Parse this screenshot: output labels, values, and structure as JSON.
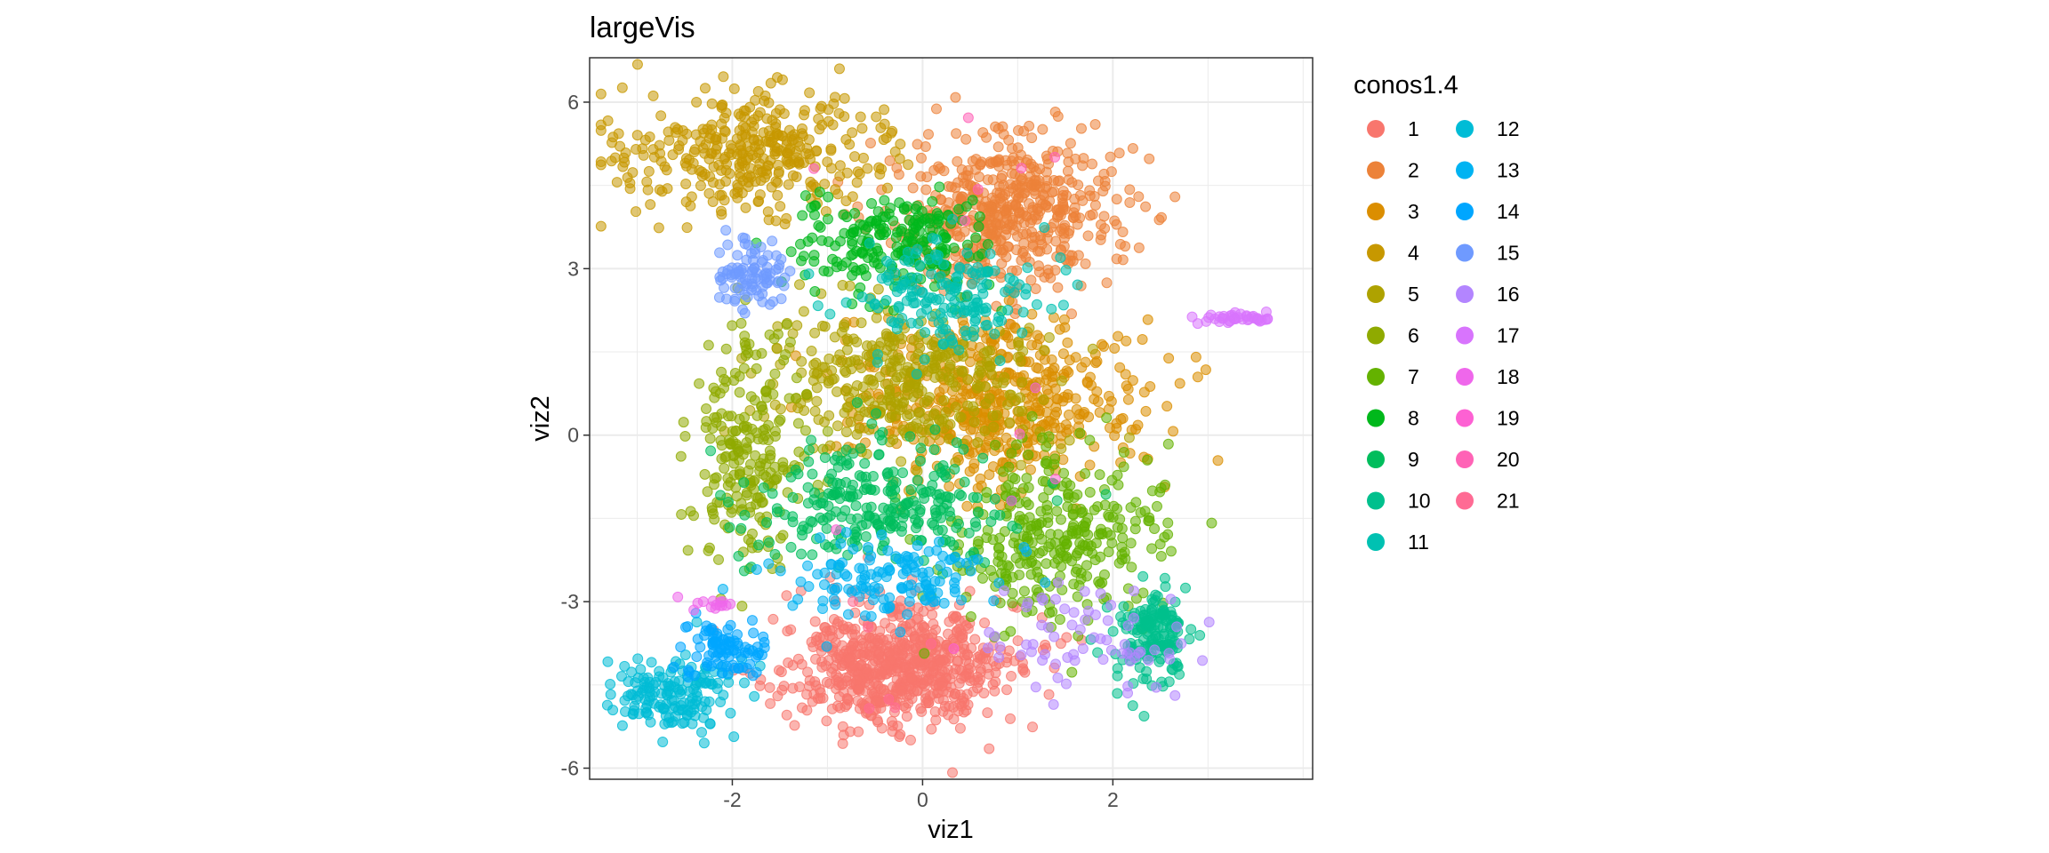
{
  "chart_data": {
    "type": "scatter",
    "title": "largeVis",
    "xlabel": "viz1",
    "ylabel": "viz2",
    "xlim": [
      -3.5,
      4.1
    ],
    "ylim": [
      -6.2,
      6.8
    ],
    "x_ticks": [
      -2,
      0,
      2
    ],
    "x_tick_labels": [
      "-2",
      "0",
      "2"
    ],
    "y_ticks": [
      -6,
      -3,
      0,
      3,
      6
    ],
    "y_tick_labels": [
      "-6",
      "-3",
      "0",
      "3",
      "6"
    ],
    "grid": true,
    "point_alpha": 0.55,
    "legend": {
      "title": "conos1.4",
      "position": "right",
      "columns": 2,
      "entries": [
        {
          "label": "1",
          "color": "#F8766D"
        },
        {
          "label": "2",
          "color": "#EC8239"
        },
        {
          "label": "3",
          "color": "#DB8E00"
        },
        {
          "label": "4",
          "color": "#C79800"
        },
        {
          "label": "5",
          "color": "#AEA200"
        },
        {
          "label": "6",
          "color": "#8FAA00"
        },
        {
          "label": "7",
          "color": "#64B200"
        },
        {
          "label": "8",
          "color": "#00B81B"
        },
        {
          "label": "9",
          "color": "#00BD5C"
        },
        {
          "label": "10",
          "color": "#00C08D"
        },
        {
          "label": "11",
          "color": "#00C1B2"
        },
        {
          "label": "12",
          "color": "#00BCD6"
        },
        {
          "label": "13",
          "color": "#00B3F2"
        },
        {
          "label": "14",
          "color": "#00A6FF"
        },
        {
          "label": "15",
          "color": "#6F9AFF"
        },
        {
          "label": "16",
          "color": "#B385FF"
        },
        {
          "label": "17",
          "color": "#D874FD"
        },
        {
          "label": "18",
          "color": "#EF67EB"
        },
        {
          "label": "19",
          "color": "#FD61D3"
        },
        {
          "label": "20",
          "color": "#FF63B6"
        },
        {
          "label": "21",
          "color": "#FF6B94"
        }
      ]
    },
    "clusters": [
      {
        "label": "1",
        "color": "#F8766D",
        "cx": -0.25,
        "cy": -4.2,
        "sx": 0.6,
        "sy": 0.55,
        "n": 700
      },
      {
        "label": "2",
        "color": "#EC8239",
        "cx": 0.9,
        "cy": 4.0,
        "sx": 0.6,
        "sy": 0.7,
        "n": 520
      },
      {
        "label": "3",
        "color": "#DB8E00",
        "cx": 0.8,
        "cy": 0.6,
        "sx": 0.75,
        "sy": 0.75,
        "n": 520
      },
      {
        "label": "4",
        "color": "#C79800",
        "cx": -1.8,
        "cy": 5.1,
        "sx": 0.75,
        "sy": 0.55,
        "n": 360
      },
      {
        "label": "5",
        "color": "#AEA200",
        "cx": -0.2,
        "cy": 1.0,
        "sx": 0.7,
        "sy": 0.65,
        "n": 360
      },
      {
        "label": "6",
        "color": "#8FAA00",
        "cx": -1.8,
        "cy": -0.2,
        "sx": 0.3,
        "sy": 1.0,
        "n": 230
      },
      {
        "label": "7",
        "color": "#64B200",
        "cx": 1.4,
        "cy": -1.8,
        "sx": 0.6,
        "sy": 0.8,
        "n": 320
      },
      {
        "label": "8",
        "color": "#00B81B",
        "cx": -0.3,
        "cy": 3.4,
        "sx": 0.55,
        "sy": 0.45,
        "n": 220
      },
      {
        "label": "9",
        "color": "#00BD5C",
        "cx": -0.4,
        "cy": -1.3,
        "sx": 0.7,
        "sy": 0.55,
        "n": 270
      },
      {
        "label": "10",
        "color": "#00C08D",
        "cx": 2.4,
        "cy": -3.7,
        "sx": 0.2,
        "sy": 0.45,
        "n": 160
      },
      {
        "label": "11",
        "color": "#00C1B2",
        "cx": 0.3,
        "cy": 2.5,
        "sx": 0.5,
        "sy": 0.5,
        "n": 170
      },
      {
        "label": "12",
        "color": "#00BCD6",
        "cx": -2.6,
        "cy": -4.7,
        "sx": 0.35,
        "sy": 0.35,
        "n": 160
      },
      {
        "label": "13",
        "color": "#00B3F2",
        "cx": -0.3,
        "cy": -2.6,
        "sx": 0.6,
        "sy": 0.35,
        "n": 140
      },
      {
        "label": "14",
        "color": "#00A6FF",
        "cx": -2.1,
        "cy": -3.8,
        "sx": 0.2,
        "sy": 0.3,
        "n": 90
      },
      {
        "label": "15",
        "color": "#6F9AFF",
        "cx": -1.8,
        "cy": 2.9,
        "sx": 0.2,
        "sy": 0.3,
        "n": 90
      },
      {
        "label": "16",
        "color": "#B385FF",
        "cx": 1.7,
        "cy": -3.6,
        "sx": 0.5,
        "sy": 0.5,
        "n": 70
      },
      {
        "label": "17",
        "color": "#D874FD",
        "cx": 3.3,
        "cy": 2.1,
        "sx": 0.2,
        "sy": 0.05,
        "n": 40
      },
      {
        "label": "18",
        "color": "#EF67EB",
        "cx": -2.2,
        "cy": -3.05,
        "sx": 0.12,
        "sy": 0.06,
        "n": 14
      },
      {
        "label": "19",
        "color": "#FD61D3",
        "cx": 0.2,
        "cy": -1.5,
        "sx": 1.0,
        "sy": 1.5,
        "n": 6
      },
      {
        "label": "20",
        "color": "#FF63B6",
        "cx": 0.8,
        "cy": 4.8,
        "sx": 0.8,
        "sy": 0.8,
        "n": 6
      },
      {
        "label": "21",
        "color": "#FF6B94",
        "cx": -0.5,
        "cy": -4.0,
        "sx": 0.6,
        "sy": 0.6,
        "n": 6
      }
    ]
  }
}
